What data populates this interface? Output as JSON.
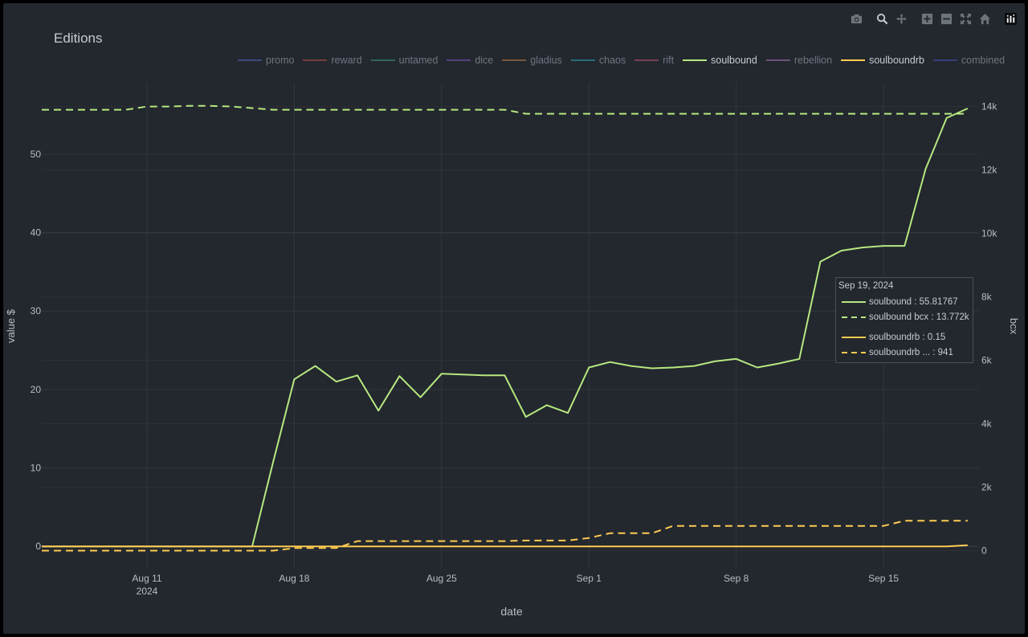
{
  "title": "Editions",
  "modebar": [
    {
      "name": "camera-icon",
      "glyph": "📷"
    },
    {
      "name": "zoom-icon",
      "glyph": "🔍"
    },
    {
      "name": "pan-icon",
      "glyph": "✥"
    },
    {
      "name": "zoom-in-icon",
      "glyph": "+"
    },
    {
      "name": "zoom-out-icon",
      "glyph": "−"
    },
    {
      "name": "autoscale-icon",
      "glyph": "⤢"
    },
    {
      "name": "reset-axes-icon",
      "glyph": "⌂"
    },
    {
      "name": "plotly-logo-icon",
      "glyph": "▥"
    }
  ],
  "legend": [
    {
      "label": "promo",
      "color": "#5b6ad0",
      "active": false
    },
    {
      "label": "reward",
      "color": "#c8564a",
      "active": false
    },
    {
      "label": "untamed",
      "color": "#3aa882",
      "active": false
    },
    {
      "label": "dice",
      "color": "#8a5ccc",
      "active": false
    },
    {
      "label": "gladius",
      "color": "#d48a4a",
      "active": false
    },
    {
      "label": "chaos",
      "color": "#2fb2c4",
      "active": false
    },
    {
      "label": "rift",
      "color": "#d05a78",
      "active": false
    },
    {
      "label": "soulbound",
      "color": "#b6e880",
      "active": true
    },
    {
      "label": "rebellion",
      "color": "#b87ec4",
      "active": false
    },
    {
      "label": "soulboundrb",
      "color": "#fecb52",
      "active": true
    },
    {
      "label": "combined",
      "color": "#4a55c8",
      "active": false
    }
  ],
  "hover": {
    "date": "Sep 19, 2024",
    "rows": [
      {
        "text": "soulbound : 55.81767",
        "color": "#b6e880",
        "dash": false
      },
      {
        "text": "soulbound bcx : 13.772k",
        "color": "#b6e880",
        "dash": true
      },
      {
        "text": "soulboundrb : 0.15",
        "color": "#fecb52",
        "dash": false
      },
      {
        "text": "soulboundrb ... : 941",
        "color": "#fecb52",
        "dash": true
      }
    ]
  },
  "chart_data": {
    "type": "line",
    "title": "Editions",
    "xlabel": "date",
    "ylabel": "value $",
    "y2label": "bcx",
    "x_start": "2024-08-06",
    "xlim_days": [
      0,
      44.5
    ],
    "ylim": [
      -2.85,
      59.1
    ],
    "y2lim": [
      -570,
      14750
    ],
    "x_ticks": [
      {
        "day": 5,
        "label": "Aug 11",
        "sub": "2024"
      },
      {
        "day": 12,
        "label": "Aug 18",
        "sub": ""
      },
      {
        "day": 19,
        "label": "Aug 25",
        "sub": ""
      },
      {
        "day": 26,
        "label": "Sep 1",
        "sub": ""
      },
      {
        "day": 33,
        "label": "Sep 8",
        "sub": ""
      },
      {
        "day": 40,
        "label": "Sep 15",
        "sub": ""
      }
    ],
    "y_ticks": [
      0,
      10,
      20,
      30,
      40,
      50
    ],
    "y2_ticks": [
      {
        "v": 0,
        "label": "0"
      },
      {
        "v": 2000,
        "label": "2k"
      },
      {
        "v": 4000,
        "label": "4k"
      },
      {
        "v": 6000,
        "label": "6k"
      },
      {
        "v": 8000,
        "label": "8k"
      },
      {
        "v": 10000,
        "label": "10k"
      },
      {
        "v": 12000,
        "label": "12k"
      },
      {
        "v": 14000,
        "label": "14k"
      }
    ],
    "series": [
      {
        "name": "soulbound",
        "axis": "y",
        "dash": false,
        "color": "#b6e880",
        "days": [
          0,
          1,
          2,
          3,
          4,
          5,
          6,
          7,
          8,
          9,
          10,
          11,
          12,
          13,
          14,
          15,
          16,
          17,
          18,
          19,
          20,
          21,
          22,
          23,
          24,
          25,
          26,
          27,
          28,
          29,
          30,
          31,
          32,
          33,
          34,
          35,
          36,
          37,
          38,
          39,
          40,
          41,
          42,
          43,
          44
        ],
        "values": [
          0,
          0,
          0,
          0,
          0,
          0,
          0,
          0,
          0,
          0,
          0,
          10.8,
          21.3,
          23.0,
          21.0,
          21.8,
          17.3,
          21.7,
          19.0,
          22.0,
          21.9,
          21.8,
          21.8,
          16.5,
          18.0,
          17.0,
          22.8,
          23.5,
          23.0,
          22.7,
          22.8,
          23.0,
          23.6,
          23.9,
          22.8,
          23.3,
          23.9,
          36.3,
          37.7,
          38.1,
          38.3,
          38.3,
          48.1,
          54.6,
          55.82
        ]
      },
      {
        "name": "soulbound bcx",
        "axis": "y2",
        "dash": true,
        "color": "#b6e880",
        "days": [
          0,
          1,
          2,
          3,
          4,
          5,
          6,
          7,
          8,
          9,
          10,
          11,
          12,
          13,
          14,
          15,
          16,
          17,
          18,
          19,
          20,
          21,
          22,
          23,
          24,
          25,
          26,
          27,
          28,
          29,
          30,
          31,
          32,
          33,
          34,
          35,
          36,
          37,
          38,
          39,
          40,
          41,
          42,
          43,
          44
        ],
        "values": [
          13900,
          13900,
          13900,
          13900,
          13900,
          14000,
          14000,
          14020,
          14020,
          14000,
          13950,
          13900,
          13900,
          13900,
          13900,
          13900,
          13900,
          13900,
          13900,
          13900,
          13900,
          13900,
          13900,
          13772,
          13772,
          13772,
          13772,
          13772,
          13772,
          13772,
          13772,
          13772,
          13772,
          13772,
          13772,
          13772,
          13772,
          13772,
          13772,
          13772,
          13772,
          13772,
          13772,
          13772,
          13772
        ]
      },
      {
        "name": "soulboundrb",
        "axis": "y",
        "dash": false,
        "color": "#fecb52",
        "days": [
          0,
          43,
          44
        ],
        "values": [
          0,
          0,
          0.15
        ]
      },
      {
        "name": "soulboundrb bcx",
        "axis": "y2",
        "dash": true,
        "color": "#fecb52",
        "days": [
          0,
          11,
          12,
          13,
          14,
          15,
          16,
          17,
          18,
          19,
          20,
          21,
          22,
          23,
          24,
          25,
          26,
          27,
          28,
          29,
          30,
          31,
          32,
          33,
          34,
          35,
          36,
          37,
          38,
          39,
          40,
          41,
          42,
          43,
          44
        ],
        "values": [
          0,
          0,
          80,
          80,
          80,
          300,
          300,
          300,
          300,
          300,
          300,
          300,
          300,
          320,
          320,
          320,
          400,
          550,
          550,
          550,
          780,
          780,
          780,
          780,
          780,
          780,
          780,
          780,
          780,
          780,
          780,
          941,
          941,
          941,
          941
        ]
      }
    ]
  }
}
